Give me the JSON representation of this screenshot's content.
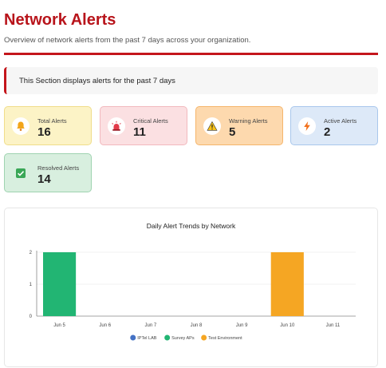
{
  "header": {
    "title": "Network Alerts",
    "subtitle": "Overview of network alerts from the past 7 days across your organization."
  },
  "notice": {
    "text": "This Section displays alerts for the past 7 days"
  },
  "cards": [
    {
      "label": "Total Alerts",
      "value": "16",
      "icon": "bell-icon",
      "bg": "#fcf3c6",
      "border": "#f0dd8a"
    },
    {
      "label": "Critical Alerts",
      "value": "11",
      "icon": "siren-icon",
      "bg": "#fbe0e2",
      "border": "#f2b9be"
    },
    {
      "label": "Warning Alerts",
      "value": "5",
      "icon": "warning-icon",
      "bg": "#fdd9ae",
      "border": "#f5b56b"
    },
    {
      "label": "Active Alerts",
      "value": "2",
      "icon": "lightning-icon",
      "bg": "#dde9f8",
      "border": "#a9c7ec"
    },
    {
      "label": "Resolved Alerts",
      "value": "14",
      "icon": "check-box-icon",
      "bg": "#d8efdf",
      "border": "#9fd3b0"
    }
  ],
  "chart_data": {
    "type": "bar",
    "title": "Daily Alert Trends by Network",
    "categories": [
      "Jun 5",
      "Jun 6",
      "Jun 7",
      "Jun 8",
      "Jun 9",
      "Jun 10",
      "Jun 11"
    ],
    "series": [
      {
        "name": "IPTel LAB",
        "color": "#4472c4",
        "values": [
          0,
          0,
          0,
          0,
          0,
          0,
          0
        ]
      },
      {
        "name": "Survey APs",
        "color": "#22b573",
        "values": [
          2,
          0,
          0,
          0,
          0,
          0,
          0
        ]
      },
      {
        "name": "Test Environment",
        "color": "#f5a623",
        "values": [
          0,
          0,
          0,
          0,
          0,
          2,
          0
        ]
      }
    ],
    "stacked": true,
    "ylim": [
      0,
      2
    ],
    "yticks": [
      0,
      1,
      2
    ],
    "grid": true,
    "legend": "bottom"
  }
}
